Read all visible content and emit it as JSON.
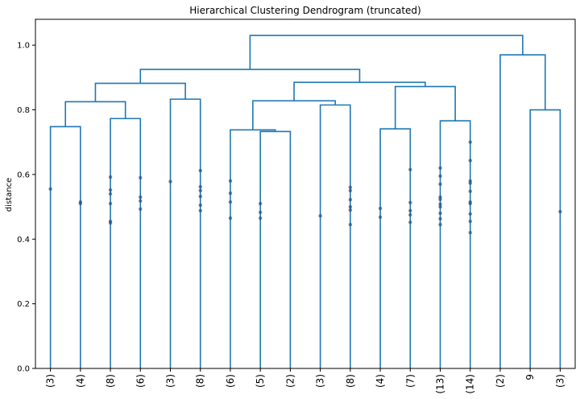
{
  "chart_data": {
    "type": "dendrogram",
    "title": "Hierarchical Clustering Dendrogram (truncated)",
    "xlabel": "",
    "ylabel": "distance",
    "ylim": [
      0,
      1.08
    ],
    "yticks": [
      0.0,
      0.2,
      0.4,
      0.6,
      0.8,
      1.0
    ],
    "ytick_labels": [
      "0.0",
      "0.2",
      "0.4",
      "0.6",
      "0.8",
      "1.0"
    ],
    "leaves": [
      "(3)",
      "(4)",
      "(8)",
      "(6)",
      "(3)",
      "(8)",
      "(6)",
      "(5)",
      "(2)",
      "(3)",
      "(8)",
      "(4)",
      "(7)",
      "(13)",
      "(14)",
      "(2)",
      "9",
      "(3)"
    ],
    "merges": [
      {
        "a": "L0",
        "b": "L1",
        "height": 0.748,
        "id": "N0"
      },
      {
        "a": "L2",
        "b": "L3",
        "height": 0.773,
        "id": "N1"
      },
      {
        "a": "N0",
        "b": "N1",
        "height": 0.825,
        "id": "N2"
      },
      {
        "a": "L4",
        "b": "L5",
        "height": 0.833,
        "id": "N3"
      },
      {
        "a": "N2",
        "b": "N3",
        "height": 0.882,
        "id": "N4"
      },
      {
        "a": "L7",
        "b": "L8",
        "height": 0.733,
        "id": "N5"
      },
      {
        "a": "L6",
        "b": "N5",
        "height": 0.738,
        "id": "N6"
      },
      {
        "a": "L9",
        "b": "L10",
        "height": 0.815,
        "id": "N7"
      },
      {
        "a": "N6",
        "b": "N7",
        "height": 0.828,
        "id": "N8"
      },
      {
        "a": "L11",
        "b": "L12",
        "height": 0.741,
        "id": "N9"
      },
      {
        "a": "L13",
        "b": "L14",
        "height": 0.766,
        "id": "N10"
      },
      {
        "a": "N9",
        "b": "N10",
        "height": 0.872,
        "id": "N11"
      },
      {
        "a": "N8",
        "b": "N11",
        "height": 0.885,
        "id": "N12"
      },
      {
        "a": "N4",
        "b": "N12",
        "height": 0.925,
        "id": "N13"
      },
      {
        "a": "L16",
        "b": "L17",
        "height": 0.8,
        "id": "N14"
      },
      {
        "a": "L15",
        "b": "N14",
        "height": 0.97,
        "id": "N15"
      },
      {
        "a": "N13",
        "b": "N15",
        "height": 1.03,
        "id": "N16"
      }
    ],
    "intermediate_merge_dots": [
      {
        "leaf": 0,
        "heights": [
          0.555
        ]
      },
      {
        "leaf": 1,
        "heights": [
          0.515,
          0.51
        ]
      },
      {
        "leaf": 2,
        "heights": [
          0.592,
          0.552,
          0.54,
          0.51,
          0.455,
          0.45
        ]
      },
      {
        "leaf": 3,
        "heights": [
          0.59,
          0.53,
          0.518,
          0.493
        ]
      },
      {
        "leaf": 4,
        "heights": [
          0.578
        ]
      },
      {
        "leaf": 5,
        "heights": [
          0.612,
          0.562,
          0.55,
          0.532,
          0.505,
          0.488
        ]
      },
      {
        "leaf": 6,
        "heights": [
          0.58,
          0.542,
          0.515,
          0.465
        ]
      },
      {
        "leaf": 7,
        "heights": [
          0.51,
          0.483,
          0.465
        ]
      },
      {
        "leaf": 9,
        "heights": [
          0.472
        ]
      },
      {
        "leaf": 10,
        "heights": [
          0.56,
          0.55,
          0.522,
          0.5,
          0.49,
          0.445
        ]
      },
      {
        "leaf": 11,
        "heights": [
          0.495,
          0.468
        ]
      },
      {
        "leaf": 12,
        "heights": [
          0.615,
          0.513,
          0.488,
          0.475,
          0.452
        ]
      },
      {
        "leaf": 13,
        "heights": [
          0.62,
          0.595,
          0.57,
          0.53,
          0.523,
          0.508,
          0.5,
          0.48,
          0.463,
          0.445
        ]
      },
      {
        "leaf": 14,
        "heights": [
          0.7,
          0.643,
          0.58,
          0.573,
          0.548,
          0.515,
          0.51,
          0.478,
          0.455,
          0.42
        ]
      },
      {
        "leaf": 17,
        "heights": [
          0.485
        ]
      }
    ],
    "colors": {
      "branch": "#1f77b4",
      "dot": "#264a73",
      "axis": "#000000"
    }
  }
}
